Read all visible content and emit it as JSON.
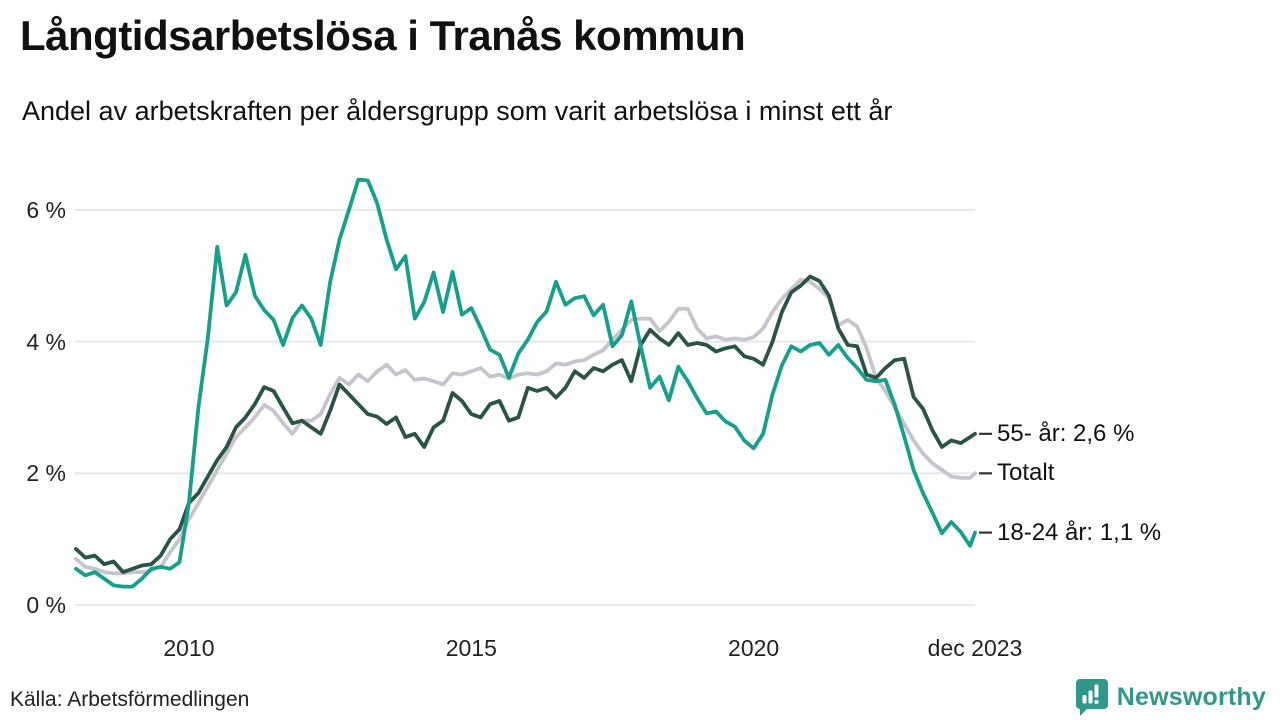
{
  "header": {
    "title": "Långtidsarbetslösa i Tranås kommun",
    "subtitle": "Andel av arbetskraften per åldersgrupp som varit arbetslösa i minst ett år"
  },
  "footer": {
    "source": "Källa: Arbetsförmedlingen",
    "brand": "Newsworthy"
  },
  "colors": {
    "grid": "#e8e7ea",
    "axis_text": "#222222",
    "end_tick": "#333333",
    "brand_teal": "#2f988a"
  },
  "chart_data": {
    "type": "line",
    "title": "Långtidsarbetslösa i Tranås kommun",
    "subtitle": "Andel av arbetskraften per åldersgrupp som varit arbetslösa i minst ett år",
    "xlabel": "",
    "ylabel": "",
    "grid": "horizontal",
    "legend_position": "end-of-line-labels",
    "xlim": [
      2008,
      2023.92
    ],
    "ylim": [
      0,
      6.8
    ],
    "x_start": 2008,
    "x_step": 0.166667,
    "x_last": 2023.92,
    "x_tick_values": [
      2010,
      2015,
      2020,
      2023.92
    ],
    "x_tick_labels": [
      "2010",
      "2015",
      "2020",
      "dec 2023"
    ],
    "y_ticks": [
      {
        "value": 0,
        "label": "0 %"
      },
      {
        "value": 2,
        "label": "2 %"
      },
      {
        "value": 4,
        "label": "4 %"
      },
      {
        "value": 6,
        "label": "6 %"
      }
    ],
    "series": [
      {
        "id": "totalt",
        "name": "Totalt",
        "end_label": "Totalt",
        "end_value": 2.0,
        "color": "#c6c4cc",
        "values": [
          0.7,
          0.58,
          0.55,
          0.5,
          0.48,
          0.48,
          0.5,
          0.5,
          0.52,
          0.58,
          0.8,
          1.0,
          1.3,
          1.55,
          1.8,
          2.05,
          2.3,
          2.55,
          2.7,
          2.85,
          3.04,
          2.95,
          2.76,
          2.6,
          2.8,
          2.8,
          2.9,
          3.2,
          3.45,
          3.35,
          3.5,
          3.4,
          3.55,
          3.65,
          3.5,
          3.57,
          3.42,
          3.44,
          3.4,
          3.35,
          3.52,
          3.5,
          3.55,
          3.6,
          3.47,
          3.5,
          3.44,
          3.5,
          3.52,
          3.5,
          3.55,
          3.67,
          3.65,
          3.7,
          3.72,
          3.8,
          3.87,
          4.03,
          4.18,
          4.33,
          4.35,
          4.35,
          4.16,
          4.3,
          4.5,
          4.5,
          4.2,
          4.05,
          4.08,
          4.03,
          4.05,
          4.03,
          4.07,
          4.2,
          4.45,
          4.65,
          4.8,
          4.94,
          4.91,
          4.8,
          4.66,
          4.25,
          4.33,
          4.23,
          3.9,
          3.45,
          3.25,
          3.0,
          2.75,
          2.5,
          2.3,
          2.15,
          2.05,
          1.95,
          1.93,
          1.93,
          2.0
        ]
      },
      {
        "id": "55",
        "name": "55- år",
        "end_label": "55- år: 2,6 %",
        "end_value": 2.6,
        "color": "#2a5446",
        "values": [
          0.85,
          0.72,
          0.75,
          0.62,
          0.66,
          0.5,
          0.55,
          0.6,
          0.62,
          0.75,
          1.0,
          1.15,
          1.55,
          1.7,
          1.95,
          2.2,
          2.4,
          2.7,
          2.85,
          3.05,
          3.31,
          3.25,
          3.0,
          2.76,
          2.8,
          2.7,
          2.6,
          2.95,
          3.35,
          3.2,
          3.05,
          2.9,
          2.86,
          2.75,
          2.85,
          2.55,
          2.6,
          2.4,
          2.7,
          2.8,
          3.22,
          3.1,
          2.9,
          2.85,
          3.05,
          3.1,
          2.8,
          2.85,
          3.3,
          3.25,
          3.3,
          3.15,
          3.3,
          3.55,
          3.45,
          3.6,
          3.55,
          3.65,
          3.72,
          3.4,
          3.95,
          4.18,
          4.05,
          3.95,
          4.13,
          3.95,
          3.98,
          3.95,
          3.85,
          3.9,
          3.93,
          3.78,
          3.74,
          3.65,
          4.0,
          4.45,
          4.75,
          4.85,
          4.99,
          4.92,
          4.7,
          4.2,
          3.95,
          3.93,
          3.5,
          3.45,
          3.6,
          3.72,
          3.74,
          3.16,
          2.98,
          2.65,
          2.4,
          2.5,
          2.46,
          2.55,
          2.6
        ]
      },
      {
        "id": "18-24",
        "name": "18-24 år",
        "end_label": "18-24 år: 1,1 %",
        "end_value": 1.1,
        "color": "#16a08b",
        "values": [
          0.55,
          0.45,
          0.5,
          0.4,
          0.3,
          0.28,
          0.28,
          0.4,
          0.55,
          0.58,
          0.55,
          0.65,
          1.55,
          3.0,
          4.05,
          5.44,
          4.55,
          4.75,
          5.32,
          4.7,
          4.48,
          4.33,
          3.95,
          4.36,
          4.55,
          4.35,
          3.95,
          4.9,
          5.55,
          6.0,
          6.46,
          6.45,
          6.1,
          5.55,
          5.1,
          5.3,
          4.35,
          4.6,
          5.05,
          4.45,
          5.06,
          4.41,
          4.51,
          4.21,
          3.88,
          3.8,
          3.45,
          3.82,
          4.03,
          4.3,
          4.46,
          4.91,
          4.56,
          4.66,
          4.69,
          4.4,
          4.56,
          3.93,
          4.1,
          4.61,
          3.93,
          3.3,
          3.47,
          3.11,
          3.62,
          3.4,
          3.14,
          2.91,
          2.94,
          2.79,
          2.71,
          2.5,
          2.38,
          2.6,
          3.2,
          3.64,
          3.93,
          3.85,
          3.95,
          3.98,
          3.8,
          3.95,
          3.75,
          3.6,
          3.42,
          3.4,
          3.42,
          3.04,
          2.56,
          2.05,
          1.7,
          1.4,
          1.09,
          1.26,
          1.11,
          0.9,
          1.1
        ]
      }
    ]
  }
}
